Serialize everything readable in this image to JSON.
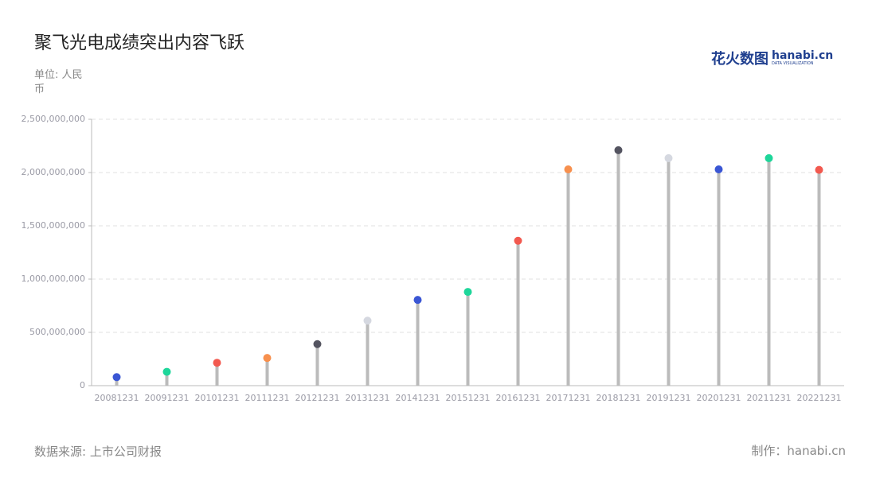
{
  "chart_data": {
    "type": "lollipop",
    "title": "聚飞光电成绩突出内容飞跃",
    "unit": "单位: 人民币",
    "source": "数据来源: 上市公司财报",
    "credit": "制作：hanabi.cn",
    "logo": {
      "brand": "花火数图",
      "site": "hanabi.cn",
      "tagline": "DATA VISUALIZATION"
    },
    "categories": [
      "20081231",
      "20091231",
      "20101231",
      "20111231",
      "20121231",
      "20131231",
      "20141231",
      "20151231",
      "20161231",
      "20171231",
      "20181231",
      "20191231",
      "20201231",
      "20211231",
      "20221231"
    ],
    "values": [
      80000000,
      130000000,
      215000000,
      260000000,
      390000000,
      610000000,
      805000000,
      880000000,
      1360000000,
      2030000000,
      2210000000,
      2135000000,
      2030000000,
      2135000000,
      2025000000
    ],
    "colors": [
      "#3a56d4",
      "#1ed69a",
      "#f2594f",
      "#f7904e",
      "#545460",
      "#d5d8e0",
      "#3a56d4",
      "#1ed69a",
      "#f2594f",
      "#f7904e",
      "#545460",
      "#d5d8e0",
      "#3a56d4",
      "#1ed69a",
      "#f2594f"
    ],
    "stem_color": "#bbbbbb",
    "ylim": [
      0,
      2500000000
    ],
    "yticks": [
      0,
      {
        "value": 500000000,
        "label": "500,000,000"
      },
      {
        "value": 1000000000,
        "label": "1,000,000,000"
      },
      {
        "value": 1500000000,
        "label": "1,500,000,000"
      },
      {
        "value": 2000000000,
        "label": "2,000,000,000"
      },
      {
        "value": 2500000000,
        "label": "2,500,000,000"
      }
    ],
    "grid": true
  }
}
